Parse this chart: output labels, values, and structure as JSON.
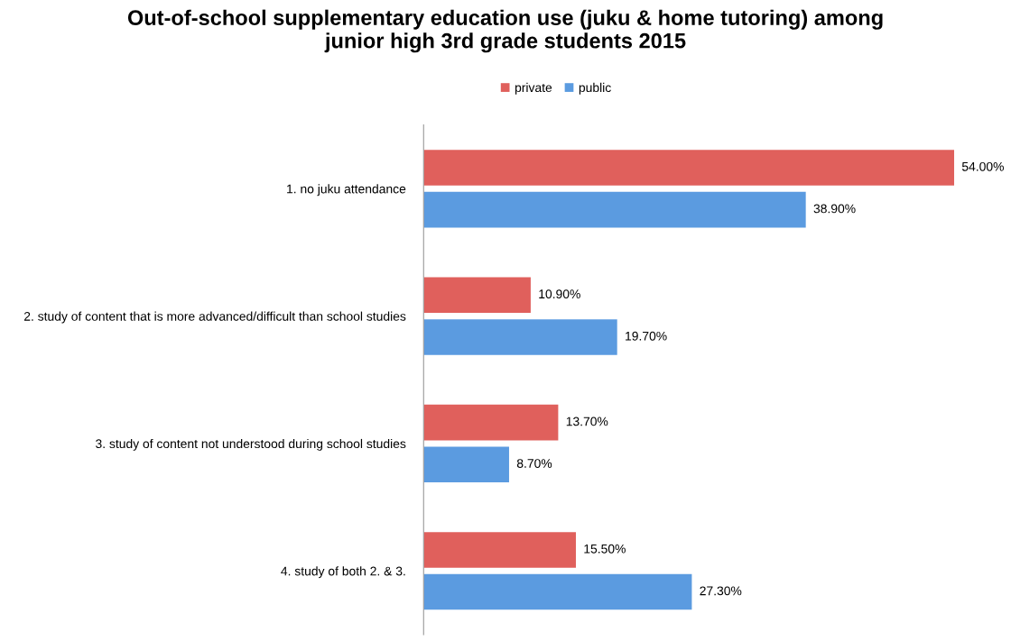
{
  "chart_data": {
    "type": "bar",
    "orientation": "horizontal",
    "title": "Out-of-school supplementary education use (juku & home tutoring) among\njunior high 3rd grade students 2015",
    "categories": [
      "1. no juku attendance",
      "2. study of content that is more advanced/difficult than school studies",
      "3. study of content not understood during school studies",
      "4. study of both 2. & 3."
    ],
    "series": [
      {
        "name": "private",
        "color": "#e0605c",
        "values": [
          54.0,
          10.9,
          13.7,
          15.5
        ],
        "value_labels": [
          "54.00%",
          "10.90%",
          "13.70%",
          "15.50%"
        ]
      },
      {
        "name": "public",
        "color": "#5b9be0",
        "values": [
          38.9,
          19.7,
          8.7,
          27.3
        ],
        "value_labels": [
          "38.90%",
          "19.70%",
          "8.70%",
          "27.30%"
        ]
      }
    ],
    "legend": "top",
    "grid": false
  }
}
